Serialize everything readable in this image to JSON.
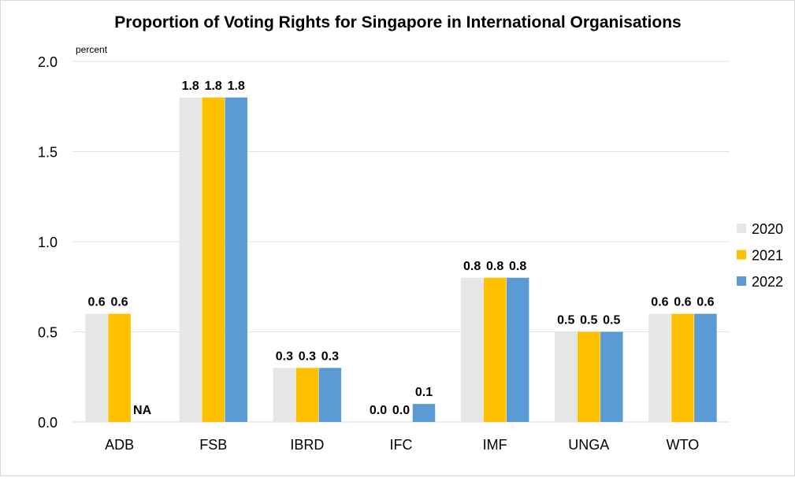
{
  "chart_data": {
    "type": "bar",
    "title": "Proportion of Voting Rights for Singapore in International Organisations",
    "ylabel": "percent",
    "xlabel": "",
    "categories": [
      "ADB",
      "FSB",
      "IBRD",
      "IFC",
      "IMF",
      "UNGA",
      "WTO"
    ],
    "ylim": [
      0,
      2.0
    ],
    "yticks": [
      "0.0",
      "0.5",
      "1.0",
      "1.5",
      "2.0"
    ],
    "grid": true,
    "legend_position": "right",
    "series": [
      {
        "name": "2020",
        "color": "#E7E6E6",
        "values": [
          0.6,
          1.8,
          0.3,
          0.0,
          0.8,
          0.5,
          0.6
        ],
        "labels": [
          "0.6",
          "1.8",
          "0.3",
          "0.0",
          "0.8",
          "0.5",
          "0.6"
        ]
      },
      {
        "name": "2021",
        "color": "#FFC000",
        "values": [
          0.6,
          1.8,
          0.3,
          0.0,
          0.8,
          0.5,
          0.6
        ],
        "labels": [
          "0.6",
          "1.8",
          "0.3",
          "0.0",
          "0.8",
          "0.5",
          "0.6"
        ]
      },
      {
        "name": "2022",
        "color": "#5B9BD5",
        "values": [
          null,
          1.8,
          0.3,
          0.1,
          0.8,
          0.5,
          0.6
        ],
        "labels": [
          "NA",
          "1.8",
          "0.3",
          "0.1",
          "0.8",
          "0.5",
          "0.6"
        ]
      }
    ]
  }
}
